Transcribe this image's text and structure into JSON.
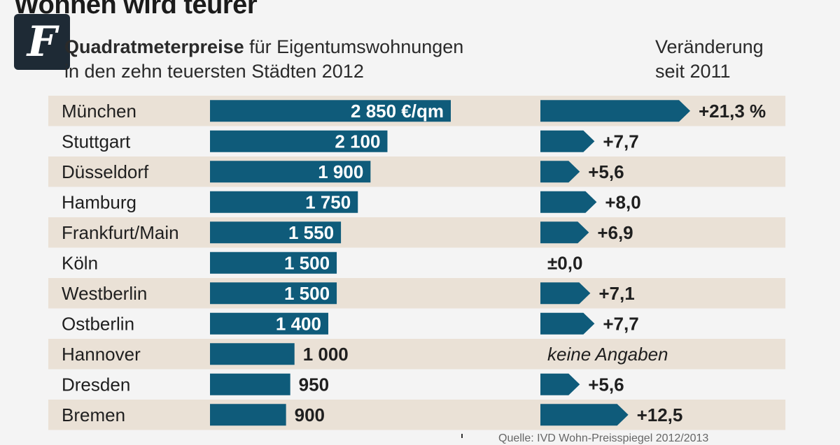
{
  "header": {
    "title": "Wohnen wird teurer",
    "subtitle_bold": "Quadratmeterpreise",
    "subtitle_rest": " für Eigentumswohnungen",
    "subtitle_line2": "in den zehn teuersten Städten 2012",
    "change_header_line1": "Veränderung",
    "change_header_line2": "seit 2011"
  },
  "logo": {
    "letter": "F",
    "icon": "faz-logo-icon"
  },
  "colors": {
    "bar": "#0f5b7a",
    "stripe": "#eae1d6",
    "background": "#f4f4f4"
  },
  "chart_data": {
    "type": "bar",
    "orientation": "horizontal",
    "title": "Wohnen wird teurer",
    "subtitle": "Quadratmeterpreise für Eigentumswohnungen in den zehn teuersten Städten 2012",
    "unit": "€/qm",
    "categories": [
      "München",
      "Stuttgart",
      "Düsseldorf",
      "Hamburg",
      "Frankfurt/Main",
      "Köln",
      "Westberlin",
      "Ostberlin",
      "Hannover",
      "Dresden",
      "Bremen"
    ],
    "series": [
      {
        "name": "Quadratmeterpreise 2012",
        "values": [
          2850,
          2100,
          1900,
          1750,
          1550,
          1500,
          1500,
          1400,
          1000,
          950,
          900
        ],
        "labels": [
          "2 850 €/qm",
          "2 100",
          "1 900",
          "1 750",
          "1 550",
          "1 500",
          "1 500",
          "1 400",
          "1 000",
          "950",
          "900"
        ]
      },
      {
        "name": "Veränderung seit 2011 (%)",
        "values": [
          21.3,
          7.7,
          5.6,
          8.0,
          6.9,
          0.0,
          7.1,
          7.7,
          null,
          5.6,
          12.5
        ],
        "labels": [
          "+21,3 %",
          "+7,7",
          "+5,6",
          "+8,0",
          "+6,9",
          "±0,0",
          "+7,1",
          "+7,7",
          "keine Angaben",
          "+5,6",
          "+12,5"
        ]
      }
    ],
    "xlim": [
      0,
      2850
    ],
    "change_lim": [
      0,
      21.3
    ],
    "grid": false,
    "legend": "none"
  },
  "source": "Quelle: IVD Wohn-Preisspiegel 2012/2013"
}
